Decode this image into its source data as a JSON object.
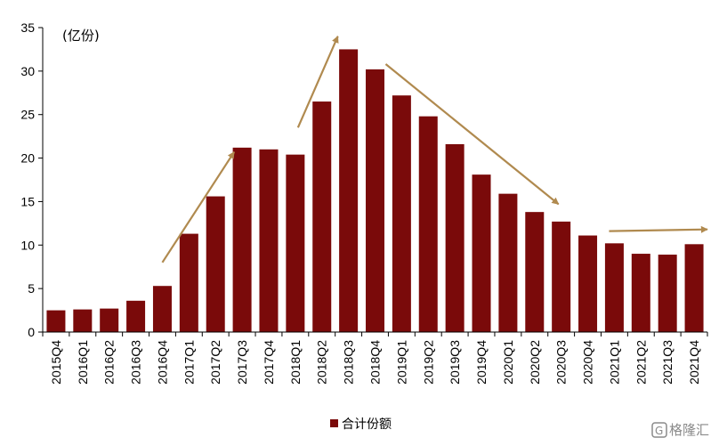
{
  "colors": {
    "bar": "#7a0a0a",
    "arrow": "#b08a4f",
    "axis": "#000000"
  },
  "chart_data": {
    "type": "bar",
    "unit_label": "(亿份)",
    "categories": [
      "2015Q4",
      "2016Q1",
      "2016Q2",
      "2016Q3",
      "2016Q4",
      "2017Q1",
      "2017Q2",
      "2017Q3",
      "2017Q4",
      "2018Q1",
      "2018Q2",
      "2018Q3",
      "2018Q4",
      "2019Q1",
      "2019Q2",
      "2019Q3",
      "2019Q4",
      "2020Q1",
      "2020Q2",
      "2020Q3",
      "2020Q4",
      "2021Q1",
      "2021Q2",
      "2021Q3",
      "2021Q4"
    ],
    "series": [
      {
        "name": "合计份额",
        "values": [
          2.5,
          2.6,
          2.7,
          3.6,
          5.3,
          11.3,
          15.6,
          21.2,
          21.0,
          20.4,
          26.5,
          32.5,
          30.2,
          27.2,
          24.8,
          21.6,
          18.1,
          15.9,
          13.8,
          12.7,
          11.1,
          10.2,
          9.0,
          8.9,
          10.1
        ]
      }
    ],
    "ylim": [
      0,
      35
    ],
    "yticks": [
      0,
      5,
      10,
      15,
      20,
      25,
      30,
      35
    ],
    "legend_position": "bottom-center",
    "grid": false,
    "trend_arrows": [
      {
        "from": [
          4,
          8.0
        ],
        "to": [
          6.7,
          20.7
        ]
      },
      {
        "from": [
          9.1,
          23.5
        ],
        "to": [
          10.6,
          34.0
        ]
      },
      {
        "from": [
          12.4,
          30.8
        ],
        "to": [
          18.9,
          14.7
        ]
      },
      {
        "from": [
          20.8,
          11.6
        ],
        "to": [
          24.5,
          11.8
        ]
      }
    ]
  },
  "watermark": {
    "text": "格隆汇",
    "glyph": "G"
  }
}
